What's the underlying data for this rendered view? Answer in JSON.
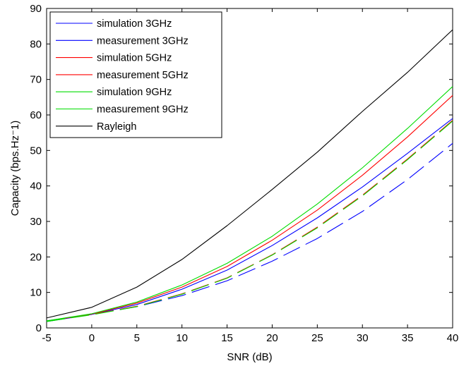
{
  "chart_data": {
    "type": "line",
    "xlabel": "SNR (dB)",
    "ylabel": "Capacity (bps.Hz⁻1)",
    "xlim": [
      -5,
      40
    ],
    "ylim": [
      0,
      90
    ],
    "xticks": [
      -5,
      0,
      5,
      10,
      15,
      20,
      25,
      30,
      35,
      40
    ],
    "yticks": [
      0,
      10,
      20,
      30,
      40,
      50,
      60,
      70,
      80,
      90
    ],
    "grid": false,
    "legend_position": "top-left",
    "series": [
      {
        "name": "simulation 3GHz",
        "color": "#0000ff",
        "dash": "long-dash",
        "x": [
          -5,
          0,
          5,
          10,
          15,
          20,
          25,
          30,
          35,
          40
        ],
        "y": [
          2,
          3.8,
          6,
          9.1,
          13.3,
          18.8,
          25.2,
          32.8,
          41.8,
          52
        ]
      },
      {
        "name": "measurement 3GHz",
        "color": "#0000ff",
        "dash": "solid",
        "x": [
          -5,
          0,
          5,
          10,
          15,
          20,
          25,
          30,
          35,
          40
        ],
        "y": [
          1.8,
          3.8,
          6.6,
          10.9,
          16.3,
          23.2,
          31,
          39.7,
          49.2,
          59
        ]
      },
      {
        "name": "simulation 5GHz",
        "color": "#ff0000",
        "dash": "long-dash",
        "x": [
          -5,
          0,
          5,
          10,
          15,
          20,
          25,
          30,
          35,
          40
        ],
        "y": [
          1.9,
          3.8,
          6.1,
          9.6,
          14.1,
          20.6,
          28.4,
          37.4,
          47.6,
          58.5
        ]
      },
      {
        "name": "measurement 5GHz",
        "color": "#ff0000",
        "dash": "solid",
        "x": [
          -5,
          0,
          5,
          10,
          15,
          20,
          25,
          30,
          35,
          40
        ],
        "y": [
          1.9,
          3.9,
          7,
          11.5,
          17.3,
          24.7,
          33.2,
          43,
          53.8,
          65.5
        ]
      },
      {
        "name": "simulation 9GHz",
        "color": "#00dd00",
        "dash": "long-dash",
        "x": [
          -5,
          0,
          5,
          10,
          15,
          20,
          25,
          30,
          35,
          40
        ],
        "y": [
          1.8,
          3.7,
          6,
          9.5,
          14,
          20.5,
          28.2,
          37.2,
          47.4,
          58.3
        ]
      },
      {
        "name": "measurement 9GHz",
        "color": "#00dd00",
        "dash": "solid",
        "x": [
          -5,
          0,
          5,
          10,
          15,
          20,
          25,
          30,
          35,
          40
        ],
        "y": [
          2,
          4,
          7.3,
          12.1,
          18.2,
          25.8,
          34.9,
          45.1,
          56.2,
          68
        ]
      },
      {
        "name": "Rayleigh",
        "color": "#000000",
        "dash": "solid",
        "x": [
          -5,
          0,
          5,
          10,
          15,
          20,
          25,
          30,
          35,
          40
        ],
        "y": [
          2.8,
          5.8,
          11.5,
          19.3,
          28.8,
          39,
          49.5,
          61,
          72,
          84
        ]
      }
    ]
  }
}
